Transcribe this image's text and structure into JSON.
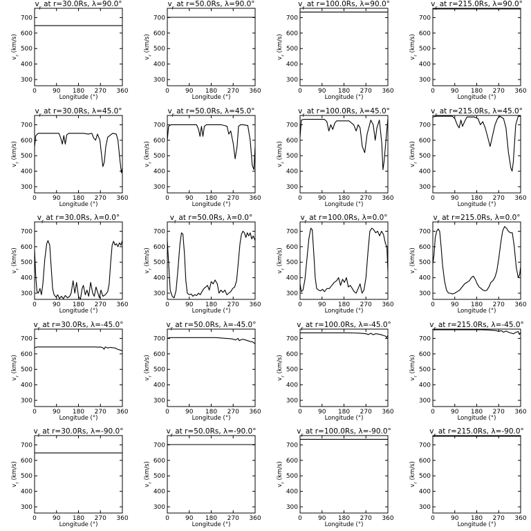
{
  "figure": {
    "xlabel": "Longitude (°)",
    "ylabel": "v_r (km/s)",
    "xticks": [
      0,
      90,
      180,
      270,
      360
    ],
    "yticks": [
      300,
      400,
      500,
      600,
      700
    ],
    "xlim": [
      0,
      360
    ],
    "ylim": [
      260,
      760
    ]
  },
  "chart_data": [
    {
      "type": "line",
      "title": "v_r at r=30.0Rs, λ=90.0°",
      "xlabel": "Longitude (°)",
      "ylabel": "v_r (km/s)",
      "xlim": [
        0,
        360
      ],
      "ylim": [
        260,
        760
      ],
      "x": [
        0,
        360
      ],
      "y": [
        648,
        648
      ]
    },
    {
      "type": "line",
      "title": "v_r at r=50.0Rs, λ=90.0°",
      "xlabel": "Longitude (°)",
      "ylabel": "v_r (km/s)",
      "xlim": [
        0,
        360
      ],
      "ylim": [
        260,
        760
      ],
      "x": [
        0,
        360
      ],
      "y": [
        702,
        702
      ]
    },
    {
      "type": "line",
      "title": "v_r at r=100.0Rs, λ=90.0°",
      "xlabel": "Longitude (°)",
      "ylabel": "v_r (km/s)",
      "xlim": [
        0,
        360
      ],
      "ylim": [
        260,
        760
      ],
      "x": [
        0,
        360
      ],
      "y": [
        736,
        736
      ]
    },
    {
      "type": "line",
      "title": "v_r at r=215.0Rs, λ=90.0°",
      "xlabel": "Longitude (°)",
      "ylabel": "v_r (km/s)",
      "xlim": [
        0,
        360
      ],
      "ylim": [
        260,
        760
      ],
      "x": [
        0,
        360
      ],
      "y": [
        756,
        756
      ]
    },
    {
      "type": "line",
      "title": "v_r at r=30.0Rs, λ=45.0°",
      "xlabel": "Longitude (°)",
      "ylabel": "v_r (km/s)",
      "xlim": [
        0,
        360
      ],
      "ylim": [
        260,
        760
      ],
      "x": [
        0,
        5,
        15,
        100,
        108,
        114,
        120,
        126,
        132,
        140,
        200,
        220,
        235,
        242,
        250,
        258,
        268,
        275,
        280,
        286,
        292,
        300,
        320,
        335,
        342,
        350,
        356,
        360
      ],
      "y": [
        560,
        630,
        645,
        645,
        610,
        575,
        630,
        575,
        635,
        645,
        645,
        640,
        645,
        615,
        600,
        640,
        600,
        500,
        430,
        460,
        560,
        620,
        645,
        640,
        600,
        470,
        390,
        420
      ]
    },
    {
      "type": "line",
      "title": "v_r at r=50.0Rs, λ=45.0°",
      "xlabel": "Longitude (°)",
      "ylabel": "v_r (km/s)",
      "xlim": [
        0,
        360
      ],
      "ylim": [
        260,
        760
      ],
      "x": [
        0,
        5,
        15,
        120,
        128,
        134,
        140,
        146,
        152,
        160,
        220,
        235,
        245,
        252,
        260,
        270,
        278,
        286,
        292,
        300,
        310,
        330,
        340,
        348,
        355,
        360
      ],
      "y": [
        600,
        690,
        700,
        700,
        670,
        625,
        690,
        625,
        690,
        700,
        700,
        695,
        690,
        640,
        660,
        580,
        480,
        560,
        690,
        700,
        700,
        695,
        600,
        440,
        410,
        560
      ]
    },
    {
      "type": "line",
      "title": "v_r at r=100.0Rs, λ=45.0°",
      "xlabel": "Longitude (°)",
      "ylabel": "v_r (km/s)",
      "xlim": [
        0,
        360
      ],
      "ylim": [
        260,
        760
      ],
      "x": [
        0,
        5,
        15,
        100,
        110,
        118,
        126,
        134,
        142,
        150,
        200,
        220,
        230,
        238,
        246,
        255,
        265,
        275,
        290,
        300,
        308,
        315,
        325,
        335,
        340,
        345,
        352,
        360
      ],
      "y": [
        620,
        730,
        735,
        735,
        720,
        660,
        700,
        670,
        710,
        725,
        725,
        700,
        660,
        700,
        680,
        560,
        520,
        640,
        730,
        700,
        600,
        680,
        730,
        580,
        410,
        470,
        600,
        740
      ]
    },
    {
      "type": "line",
      "title": "v_r at r=215.0Rs, λ=45.0°",
      "xlabel": "Longitude (°)",
      "ylabel": "v_r (km/s)",
      "xlim": [
        0,
        360
      ],
      "ylim": [
        260,
        760
      ],
      "x": [
        0,
        15,
        80,
        90,
        100,
        108,
        115,
        122,
        130,
        140,
        170,
        185,
        195,
        205,
        215,
        225,
        235,
        245,
        255,
        265,
        275,
        290,
        300,
        310,
        320,
        325,
        330,
        340,
        350,
        360
      ],
      "y": [
        750,
        755,
        755,
        740,
        700,
        680,
        730,
        690,
        720,
        750,
        750,
        740,
        700,
        720,
        680,
        620,
        560,
        630,
        700,
        740,
        755,
        740,
        680,
        520,
        420,
        400,
        460,
        700,
        755,
        755
      ]
    },
    {
      "type": "line",
      "title": "v_r at r=30.0Rs, λ=0.0°",
      "xlabel": "Longitude (°)",
      "ylabel": "v_r (km/s)",
      "xlim": [
        0,
        360
      ],
      "ylim": [
        260,
        760
      ],
      "x": [
        0,
        5,
        10,
        15,
        22,
        28,
        34,
        42,
        50,
        55,
        62,
        68,
        74,
        80,
        88,
        95,
        102,
        110,
        118,
        126,
        135,
        144,
        150,
        158,
        165,
        172,
        180,
        188,
        195,
        200,
        208,
        215,
        222,
        230,
        238,
        245,
        252,
        260,
        266,
        272,
        280,
        290,
        300,
        306,
        312,
        318,
        324,
        330,
        336,
        342,
        348,
        354,
        360
      ],
      "y": [
        580,
        400,
        310,
        300,
        330,
        290,
        360,
        520,
        620,
        640,
        610,
        470,
        330,
        290,
        275,
        290,
        265,
        280,
        265,
        285,
        270,
        280,
        300,
        380,
        300,
        370,
        280,
        260,
        330,
        350,
        290,
        320,
        280,
        370,
        300,
        280,
        340,
        300,
        270,
        320,
        280,
        290,
        310,
        360,
        500,
        610,
        635,
        610,
        620,
        600,
        625,
        610,
        640
      ]
    },
    {
      "type": "line",
      "title": "v_r at r=50.0Rs, λ=0.0°",
      "xlabel": "Longitude (°)",
      "ylabel": "v_r (km/s)",
      "xlim": [
        0,
        360
      ],
      "ylim": [
        260,
        760
      ],
      "x": [
        0,
        5,
        12,
        20,
        28,
        36,
        44,
        52,
        58,
        64,
        70,
        76,
        82,
        90,
        98,
        105,
        112,
        120,
        128,
        135,
        142,
        150,
        158,
        165,
        172,
        180,
        188,
        196,
        205,
        212,
        220,
        228,
        236,
        244,
        252,
        260,
        268,
        276,
        284,
        290,
        298,
        304,
        310,
        316,
        322,
        328,
        334,
        340,
        346,
        352,
        360
      ],
      "y": [
        640,
        500,
        320,
        280,
        270,
        320,
        460,
        620,
        690,
        680,
        560,
        380,
        300,
        290,
        295,
        280,
        290,
        285,
        300,
        290,
        310,
        330,
        340,
        350,
        320,
        375,
        360,
        385,
        360,
        300,
        320,
        305,
        320,
        290,
        300,
        310,
        330,
        340,
        380,
        480,
        620,
        680,
        700,
        690,
        660,
        690,
        670,
        690,
        650,
        670,
        640
      ]
    },
    {
      "type": "line",
      "title": "v_r at r=100.0Rs, λ=0.0°",
      "xlabel": "Longitude (°)",
      "ylabel": "v_r (km/s)",
      "xlim": [
        0,
        360
      ],
      "ylim": [
        260,
        760
      ],
      "x": [
        0,
        5,
        12,
        20,
        28,
        36,
        44,
        50,
        56,
        62,
        68,
        76,
        84,
        92,
        100,
        110,
        120,
        130,
        140,
        150,
        158,
        166,
        174,
        182,
        190,
        198,
        206,
        214,
        222,
        230,
        238,
        246,
        254,
        262,
        270,
        278,
        286,
        294,
        302,
        310,
        318,
        326,
        334,
        342,
        350,
        356,
        360
      ],
      "y": [
        360,
        310,
        320,
        390,
        520,
        650,
        720,
        710,
        560,
        400,
        330,
        320,
        315,
        325,
        310,
        330,
        330,
        350,
        370,
        380,
        400,
        350,
        390,
        370,
        400,
        340,
        350,
        330,
        310,
        300,
        330,
        360,
        300,
        320,
        400,
        560,
        700,
        720,
        710,
        690,
        700,
        670,
        700,
        680,
        620,
        600,
        440
      ]
    },
    {
      "type": "line",
      "title": "v_r at r=215.0Rs, λ=0.0°",
      "xlabel": "Longitude (°)",
      "ylabel": "v_r (km/s)",
      "xlim": [
        0,
        360
      ],
      "ylim": [
        260,
        760
      ],
      "x": [
        0,
        5,
        10,
        16,
        22,
        28,
        34,
        40,
        48,
        56,
        64,
        72,
        80,
        90,
        100,
        110,
        120,
        130,
        140,
        150,
        158,
        166,
        174,
        182,
        190,
        198,
        206,
        214,
        222,
        230,
        238,
        246,
        254,
        262,
        270,
        278,
        286,
        294,
        302,
        310,
        318,
        326,
        334,
        342,
        350,
        356,
        360
      ],
      "y": [
        490,
        550,
        660,
        700,
        715,
        700,
        600,
        480,
        380,
        320,
        300,
        300,
        295,
        300,
        310,
        320,
        340,
        360,
        370,
        380,
        400,
        410,
        390,
        360,
        340,
        330,
        320,
        315,
        320,
        340,
        370,
        380,
        400,
        440,
        520,
        620,
        700,
        730,
        720,
        700,
        690,
        690,
        600,
        470,
        400,
        420,
        470
      ]
    },
    {
      "type": "line",
      "title": "v_r at r=30.0Rs, λ=-45.0°",
      "xlabel": "Longitude (°)",
      "ylabel": "v_r (km/s)",
      "xlim": [
        0,
        360
      ],
      "ylim": [
        260,
        760
      ],
      "x": [
        0,
        10,
        250,
        260,
        270,
        280,
        285,
        290,
        300,
        310,
        320,
        330,
        340,
        350,
        360
      ],
      "y": [
        640,
        645,
        645,
        643,
        645,
        640,
        630,
        645,
        638,
        642,
        640,
        638,
        630,
        625,
        620
      ]
    },
    {
      "type": "line",
      "title": "v_r at r=50.0Rs, λ=-45.0°",
      "xlabel": "Longitude (°)",
      "ylabel": "v_r (km/s)",
      "xlim": [
        0,
        360
      ],
      "ylim": [
        260,
        760
      ],
      "x": [
        0,
        10,
        200,
        240,
        260,
        270,
        280,
        290,
        295,
        300,
        310,
        320,
        330,
        340,
        350,
        360
      ],
      "y": [
        700,
        705,
        705,
        700,
        698,
        695,
        690,
        700,
        685,
        690,
        695,
        690,
        685,
        680,
        678,
        665
      ]
    },
    {
      "type": "line",
      "title": "v_r at r=100.0Rs, λ=-45.0°",
      "xlabel": "Longitude (°)",
      "ylabel": "v_r (km/s)",
      "xlim": [
        0,
        360
      ],
      "ylim": [
        260,
        760
      ],
      "x": [
        0,
        10,
        200,
        240,
        260,
        270,
        280,
        290,
        300,
        310,
        320,
        330,
        340,
        350,
        355,
        360
      ],
      "y": [
        736,
        736,
        736,
        734,
        732,
        730,
        725,
        733,
        724,
        730,
        728,
        725,
        720,
        715,
        705,
        720
      ]
    },
    {
      "type": "line",
      "title": "v_r at r=215.0Rs, λ=-45.0°",
      "xlabel": "Longitude (°)",
      "ylabel": "v_r (km/s)",
      "xlim": [
        0,
        360
      ],
      "ylim": [
        260,
        760
      ],
      "x": [
        0,
        10,
        200,
        230,
        250,
        260,
        270,
        280,
        290,
        300,
        310,
        320,
        330,
        340,
        350,
        355,
        360
      ],
      "y": [
        756,
        756,
        756,
        754,
        752,
        750,
        745,
        750,
        740,
        748,
        740,
        735,
        730,
        738,
        745,
        725,
        740
      ]
    },
    {
      "type": "line",
      "title": "v_r at r=30.0Rs, λ=-90.0°",
      "xlabel": "Longitude (°)",
      "ylabel": "v_r (km/s)",
      "xlim": [
        0,
        360
      ],
      "ylim": [
        260,
        760
      ],
      "x": [
        0,
        360
      ],
      "y": [
        648,
        648
      ]
    },
    {
      "type": "line",
      "title": "v_r at r=50.0Rs, λ=-90.0°",
      "xlabel": "Longitude (°)",
      "ylabel": "v_r (km/s)",
      "xlim": [
        0,
        360
      ],
      "ylim": [
        260,
        760
      ],
      "x": [
        0,
        360
      ],
      "y": [
        702,
        702
      ]
    },
    {
      "type": "line",
      "title": "v_r at r=100.0Rs, λ=-90.0°",
      "xlabel": "Longitude (°)",
      "ylabel": "v_r (km/s)",
      "xlim": [
        0,
        360
      ],
      "ylim": [
        260,
        760
      ],
      "x": [
        0,
        360
      ],
      "y": [
        736,
        736
      ]
    },
    {
      "type": "line",
      "title": "v_r at r=215.0Rs, λ=-90.0°",
      "xlabel": "Longitude (°)",
      "ylabel": "v_r (km/s)",
      "xlim": [
        0,
        360
      ],
      "ylim": [
        260,
        760
      ],
      "x": [
        0,
        360
      ],
      "y": [
        756,
        756
      ]
    }
  ]
}
